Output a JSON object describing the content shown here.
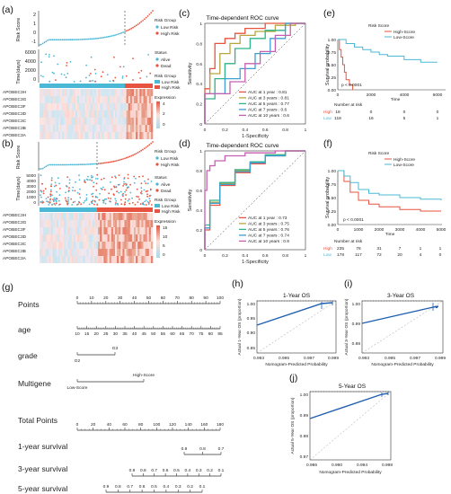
{
  "panels": {
    "a": {
      "label": "(a)",
      "risk_ylabel": "Risk Score",
      "risk_ticks": [
        "2",
        "1",
        "0",
        "-1"
      ],
      "time_ylabel": "Time(days)",
      "time_ticks": [
        "6000",
        "4000",
        "2000",
        "0"
      ],
      "legend_risk_title": "Risk Group",
      "legend_risk": [
        "Low Risk",
        "High Risk"
      ],
      "legend_status_title": "Status",
      "legend_status": [
        "Alive",
        "Dead"
      ],
      "legend_group_title": "Risk Group",
      "legend_group": [
        "Low Risk",
        "High Risk"
      ],
      "legend_expr_title": "Expression",
      "legend_expr_ticks": [
        "4",
        "2",
        "0"
      ],
      "genes": [
        "APOBEC3H",
        "APOBEC3G",
        "APOBEC3F",
        "APOBEC3D",
        "APOBEC3C",
        "APOBEC3B",
        "APOBEC3A"
      ]
    },
    "b": {
      "label": "(b)",
      "risk_ylabel": "Risk Score",
      "time_ylabel": "Time(days)",
      "time_ticks": [
        "5000",
        "4000",
        "3000",
        "2000",
        "1000",
        "0"
      ],
      "legend_risk_title": "Risk Group",
      "legend_risk": [
        "Low Risk",
        "High Risk"
      ],
      "legend_status_title": "Status",
      "legend_status": [
        "Alive",
        "Dead"
      ],
      "legend_group_title": "Risk Group",
      "legend_group": [
        "Low Risk",
        "High Risk"
      ],
      "legend_expr_title": "Expression",
      "legend_expr_ticks": [
        "15",
        "10",
        "5",
        "0"
      ],
      "genes": [
        "APOBEC3H",
        "APOBEC3G",
        "APOBEC3F",
        "APOBEC3D",
        "APOBEC3C",
        "APOBEC3B",
        "APOBEC3A"
      ]
    },
    "c": {
      "label": "(c)",
      "title": "Time-dependent ROC curve",
      "xlabel": "1-Specificity",
      "ylabel": "Sensitivity",
      "ticks": [
        "0",
        "0.2",
        "0.4",
        "0.6",
        "0.8",
        "1"
      ],
      "legend": [
        "AUC at 1 year : 0.81",
        "AUC at 3 years : 0.81",
        "AUC at 5 years : 0.77",
        "AUC at 7 years : 0.6",
        "AUC at 10 years : 0.6"
      ]
    },
    "d": {
      "label": "(d)",
      "title": "Time-dependent ROC curve",
      "xlabel": "1-Specificity",
      "ylabel": "Sensitivity",
      "ticks": [
        "0",
        "0.2",
        "0.4",
        "0.6",
        "0.8",
        "1"
      ],
      "legend": [
        "AUC at 1 year : 0.73",
        "AUC at 3 years : 0.75",
        "AUC at 5 years : 0.76",
        "AUC at 7 years : 0.74",
        "AUC at 10 years : 0.9"
      ]
    },
    "e": {
      "label": "(e)",
      "legend_title": "Risk Score",
      "legend": [
        "High-Score",
        "Low-Score"
      ],
      "ylabel": "Survival probability",
      "xlabel": "Time",
      "yticks": [
        "1.00",
        "0.75",
        "0.50",
        "0.25",
        "0.00"
      ],
      "xticks": [
        "0",
        "2000",
        "4000",
        "6000"
      ],
      "pvalue": "p < 0.0001",
      "risk_title": "Number at risk",
      "risk_rows": [
        {
          "name": "High",
          "values": [
            "18",
            "0",
            "0",
            "0"
          ]
        },
        {
          "name": "Low",
          "values": [
            "118",
            "16",
            "5",
            "1"
          ]
        }
      ]
    },
    "f": {
      "label": "(f)",
      "legend_title": "Risk Score",
      "legend": [
        "High-Score",
        "Low-Score"
      ],
      "ylabel": "Survival probability",
      "xlabel": "Time",
      "yticks": [
        "1.00",
        "0.75",
        "0.50",
        "0.25",
        "0.00"
      ],
      "xticks": [
        "0",
        "1000",
        "2000",
        "3000",
        "4000",
        "5000"
      ],
      "pvalue": "p < 0.0001",
      "risk_title": "Number at risk",
      "risk_rows": [
        {
          "name": "High",
          "values": [
            "235",
            "76",
            "31",
            "7",
            "1",
            "1"
          ]
        },
        {
          "name": "Low",
          "values": [
            "178",
            "117",
            "72",
            "20",
            "4",
            "0"
          ]
        }
      ]
    },
    "g": {
      "label": "(g)",
      "rows": [
        "Points",
        "age",
        "grade",
        "Multigene",
        "Total Points",
        "1-year survival",
        "3-year survival",
        "5-year survival"
      ],
      "points_ticks": [
        "0",
        "10",
        "20",
        "30",
        "40",
        "50",
        "60",
        "70",
        "80",
        "90",
        "100"
      ],
      "age_ticks": [
        "10",
        "15",
        "20",
        "25",
        "30",
        "35",
        "40",
        "45",
        "50",
        "55",
        "60",
        "65",
        "70",
        "75",
        "80",
        "85"
      ],
      "grade_labels": [
        "G2",
        "G3"
      ],
      "multigene_labels": [
        "Low-Score",
        "High-Score"
      ],
      "total_ticks": [
        "0",
        "20",
        "40",
        "60",
        "80",
        "100",
        "120",
        "140",
        "160",
        "180"
      ],
      "surv1_ticks": [
        "0.9",
        "0.8",
        "0.7"
      ],
      "surv3_ticks": [
        "0.9",
        "0.8",
        "0.7",
        "0.6",
        "0.5",
        "0.4",
        "0.3",
        "0.2",
        "0.1"
      ],
      "surv5_ticks": [
        "0.9",
        "0.8",
        "0.7",
        "0.6",
        "0.5",
        "0.4",
        "0.3",
        "0.2",
        "0.1"
      ]
    },
    "h": {
      "label": "(h)",
      "title": "1-Year OS",
      "ylabel": "Actual 1-Year OS (proportion)",
      "xlabel": "Nomogram-Predicted Probability",
      "xticks": [
        "0.993",
        "0.995",
        "0.997",
        "0.999"
      ],
      "yticks": [
        "1.00",
        "0.95",
        "0.90",
        "0.85"
      ]
    },
    "i": {
      "label": "(i)",
      "title": "3-Year OS",
      "ylabel": "Actual 3-Year OS (proportion)",
      "xlabel": "Nomogram-Predicted Probability",
      "xticks": [
        "0.993",
        "0.995",
        "0.997",
        "0.999"
      ],
      "yticks": [
        "1.00",
        "0.99",
        "0.98"
      ]
    },
    "j": {
      "label": "(j)",
      "title": "5-Year OS",
      "ylabel": "Actual 5-Year OS (proportion)",
      "xlabel": "Nomogram-Predicted Probability",
      "xticks": [
        "0.986",
        "0.990",
        "0.994",
        "0.998"
      ],
      "yticks": [
        "1.00",
        "0.99",
        "0.98",
        "0.97"
      ]
    }
  },
  "colors": {
    "low": "#4bb8d6",
    "high": "#e8533f",
    "blue_curve": "#1f5fb0",
    "roc": [
      "#e8533f",
      "#b7a63f",
      "#2fb38a",
      "#3d9fd6",
      "#c75fb0"
    ]
  },
  "chart_data": [
    {
      "type": "line",
      "title": "Time-dependent ROC curve",
      "xlabel": "1-Specificity",
      "ylabel": "Sensitivity",
      "xlim": [
        0,
        1
      ],
      "ylim": [
        0,
        1
      ],
      "series": [
        {
          "name": "AUC at 1 year : 0.81",
          "x": [
            0,
            0.05,
            0.1,
            0.1,
            0.2,
            0.3,
            0.4,
            0.6,
            0.8,
            1
          ],
          "y": [
            0,
            0.35,
            0.55,
            0.7,
            0.8,
            0.85,
            0.9,
            0.95,
            1,
            1
          ]
        },
        {
          "name": "AUC at 3 years : 0.81",
          "x": [
            0,
            0.05,
            0.15,
            0.25,
            0.35,
            0.5,
            0.7,
            0.9,
            1
          ],
          "y": [
            0,
            0.3,
            0.5,
            0.7,
            0.8,
            0.88,
            0.92,
            0.98,
            1
          ]
        },
        {
          "name": "AUC at 5 years : 0.77",
          "x": [
            0,
            0.1,
            0.2,
            0.3,
            0.45,
            0.6,
            0.8,
            1
          ],
          "y": [
            0,
            0.25,
            0.45,
            0.6,
            0.75,
            0.85,
            0.93,
            1
          ]
        },
        {
          "name": "AUC at 7 years : 0.6",
          "x": [
            0,
            0.2,
            0.35,
            0.5,
            0.65,
            0.8,
            1
          ],
          "y": [
            0,
            0.3,
            0.45,
            0.55,
            0.7,
            0.85,
            1
          ]
        },
        {
          "name": "AUC at 10 years : 0.6",
          "x": [
            0,
            0.25,
            0.4,
            0.55,
            0.7,
            0.85,
            1
          ],
          "y": [
            0,
            0.3,
            0.42,
            0.6,
            0.72,
            0.88,
            1
          ]
        }
      ]
    },
    {
      "type": "line",
      "title": "Time-dependent ROC curve",
      "xlabel": "1-Specificity",
      "ylabel": "Sensitivity",
      "xlim": [
        0,
        1
      ],
      "ylim": [
        0,
        1
      ],
      "series": [
        {
          "name": "AUC at 1 year : 0.73",
          "x": [
            0,
            0.05,
            0.15,
            0.3,
            0.45,
            0.6,
            0.8,
            1
          ],
          "y": [
            0,
            0.2,
            0.45,
            0.65,
            0.78,
            0.87,
            0.95,
            1
          ]
        },
        {
          "name": "AUC at 3 years : 0.75",
          "x": [
            0,
            0.05,
            0.15,
            0.3,
            0.45,
            0.6,
            0.8,
            1
          ],
          "y": [
            0,
            0.22,
            0.48,
            0.67,
            0.8,
            0.88,
            0.96,
            1
          ]
        },
        {
          "name": "AUC at 5 years : 0.76",
          "x": [
            0,
            0.05,
            0.15,
            0.3,
            0.45,
            0.6,
            0.8,
            1
          ],
          "y": [
            0,
            0.25,
            0.5,
            0.68,
            0.81,
            0.89,
            0.96,
            1
          ]
        },
        {
          "name": "AUC at 7 years : 0.74",
          "x": [
            0,
            0.05,
            0.15,
            0.3,
            0.45,
            0.6,
            0.8,
            1
          ],
          "y": [
            0,
            0.22,
            0.47,
            0.66,
            0.79,
            0.88,
            0.95,
            1
          ]
        },
        {
          "name": "AUC at 10 years : 0.9",
          "x": [
            0,
            0.02,
            0.05,
            0.1,
            0.2,
            0.4,
            0.7,
            1
          ],
          "y": [
            0,
            0.6,
            0.8,
            0.85,
            0.9,
            0.95,
            0.98,
            1
          ]
        }
      ]
    },
    {
      "type": "line",
      "title": "",
      "xlabel": "Time",
      "ylabel": "Survival probability",
      "xlim": [
        0,
        6500
      ],
      "ylim": [
        0,
        1
      ],
      "series": [
        {
          "name": "High-Score",
          "x": [
            0,
            100,
            200,
            300,
            400,
            500,
            700,
            900
          ],
          "y": [
            1,
            0.8,
            0.65,
            0.5,
            0.35,
            0.2,
            0.1,
            0
          ]
        },
        {
          "name": "Low-Score",
          "x": [
            0,
            500,
            1000,
            1500,
            2000,
            2500,
            3000,
            4000,
            5000,
            6000
          ],
          "y": [
            1,
            0.92,
            0.85,
            0.8,
            0.75,
            0.7,
            0.67,
            0.6,
            0.55,
            0.55
          ]
        }
      ]
    },
    {
      "type": "line",
      "title": "",
      "xlabel": "Time",
      "ylabel": "Survival probability",
      "xlim": [
        0,
        5000
      ],
      "ylim": [
        0,
        1
      ],
      "series": [
        {
          "name": "High-Score",
          "x": [
            0,
            300,
            600,
            1000,
            1500,
            2000,
            3000,
            4000,
            5000
          ],
          "y": [
            1,
            0.8,
            0.6,
            0.45,
            0.38,
            0.33,
            0.28,
            0.25,
            0.25
          ]
        },
        {
          "name": "Low-Score",
          "x": [
            0,
            300,
            600,
            1000,
            1500,
            2000,
            3000,
            4000,
            5000
          ],
          "y": [
            1,
            0.9,
            0.78,
            0.65,
            0.58,
            0.55,
            0.5,
            0.47,
            0.45
          ]
        }
      ]
    }
  ]
}
